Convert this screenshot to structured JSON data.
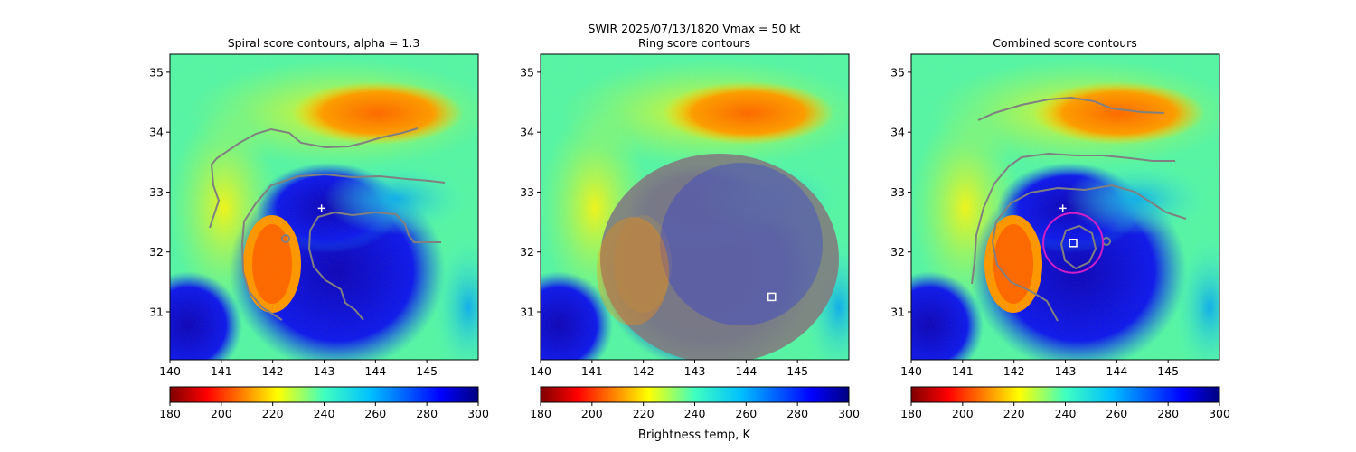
{
  "header": {
    "line1": "SWIR  2025/07/13/1820    Vmax = 50 kt",
    "xlabel_shared": "Brightness temp, K"
  },
  "chart_data": [
    {
      "type": "heatmap",
      "title": "Spiral score contours, alpha =  1.3",
      "x_ticks": [
        "140",
        "141",
        "142",
        "143",
        "144",
        "145"
      ],
      "y_ticks": [
        "31",
        "32",
        "33",
        "34",
        "35"
      ],
      "xlim": [
        140,
        146
      ],
      "ylim": [
        30.2,
        35.3
      ],
      "colorbar": {
        "ticks": [
          "180",
          "200",
          "220",
          "240",
          "260",
          "280",
          "300"
        ],
        "range": [
          180,
          300
        ],
        "colormap": "jet_r"
      },
      "center_marker": {
        "symbol": "+",
        "lon": 142.95,
        "lat": 32.73
      }
    },
    {
      "type": "heatmap",
      "title": "Ring score contours",
      "x_ticks": [
        "140",
        "141",
        "142",
        "143",
        "144",
        "145"
      ],
      "y_ticks": [
        "31",
        "32",
        "33",
        "34",
        "35"
      ],
      "xlim": [
        140,
        146
      ],
      "ylim": [
        30.2,
        35.3
      ],
      "colorbar": {
        "ticks": [
          "180",
          "200",
          "220",
          "240",
          "260",
          "280",
          "300"
        ],
        "range": [
          180,
          300
        ],
        "colormap": "jet_r"
      },
      "square_marker": {
        "lon": 144.5,
        "lat": 31.25
      }
    },
    {
      "type": "heatmap",
      "title": "Combined score contours",
      "x_ticks": [
        "140",
        "141",
        "142",
        "143",
        "144",
        "145"
      ],
      "y_ticks": [
        "31",
        "32",
        "33",
        "34",
        "35"
      ],
      "xlim": [
        140,
        146
      ],
      "ylim": [
        30.2,
        35.3
      ],
      "colorbar": {
        "ticks": [
          "180",
          "200",
          "220",
          "240",
          "260",
          "280",
          "300"
        ],
        "range": [
          180,
          300
        ],
        "colormap": "jet_r"
      },
      "center_marker": {
        "symbol": "+",
        "lon": 142.95,
        "lat": 32.73
      },
      "square_marker": {
        "lon": 143.15,
        "lat": 32.15
      },
      "circle": {
        "lon": 143.15,
        "lat": 32.15,
        "radius_deg": 0.58,
        "color": "#d01ec8"
      }
    }
  ],
  "colors": {
    "contour": "#808080",
    "frame": "#000000",
    "marker": "#ffffff"
  }
}
